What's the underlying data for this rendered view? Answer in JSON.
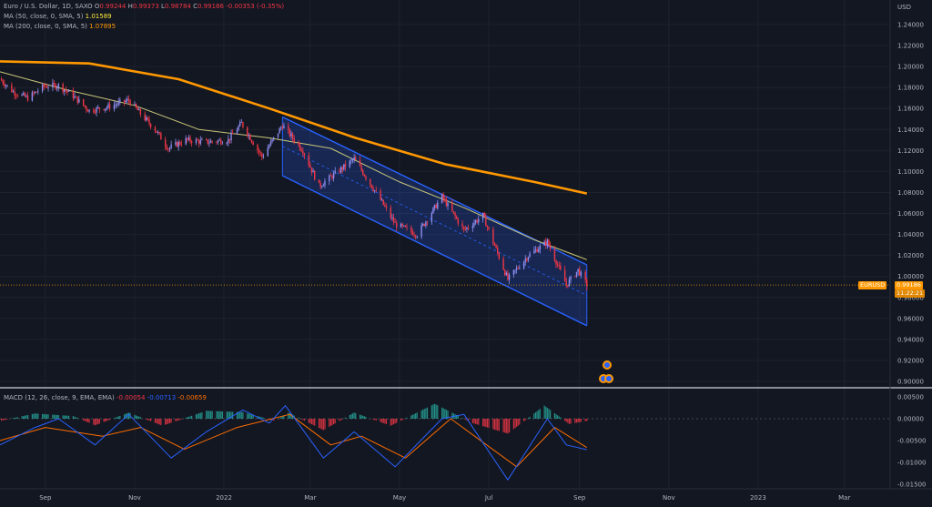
{
  "legend": {
    "symbol": "Euro / U.S. Dollar, 1D, SAXO",
    "o_label": "O",
    "o_val": "0.99244",
    "h_label": "H",
    "h_val": "0.99373",
    "l_label": "L",
    "l_val": "0.98784",
    "c_label": "C",
    "c_val": "0.99186",
    "change": "-0.00353 (-0.35%)",
    "ma50_label": "MA (50, close, 0, SMA, 5)",
    "ma50_val": "1.01589",
    "ma200_label": "MA (200, close, 0, SMA, 5)",
    "ma200_val": "1.07895",
    "macd_label": "MACD (12, 26, close, 9, EMA, EMA)",
    "macd_hist": "-0.00054",
    "macd_line": "-0.00713",
    "macd_signal": "-0.00659"
  },
  "badges": {
    "symbol": "EURUSD",
    "price": "0.99186",
    "countdown": "11:22:21"
  },
  "colors": {
    "background": "#131722",
    "up": "#8e8ef0",
    "down": "#f23645",
    "ma50": "#c9c77a",
    "ma200": "#ff9800",
    "channel": "#2962ff",
    "macd": "#2962ff",
    "signal": "#ff6d00",
    "hist_up": "#26a69a",
    "hist_down": "#f23645",
    "price_badge": "#ff9800"
  },
  "chart_data": [
    {
      "type": "line",
      "title": "Euro / U.S. Dollar, 1D, SAXO",
      "ylabel": "USD",
      "ylim": [
        0.89,
        1.25
      ],
      "y_ticks": [
        "1.24000",
        "1.22000",
        "1.20000",
        "1.18000",
        "1.16000",
        "1.14000",
        "1.12000",
        "1.10000",
        "1.08000",
        "1.06000",
        "1.04000",
        "1.02000",
        "1.00000",
        "0.98000",
        "0.96000",
        "0.94000",
        "0.92000",
        "0.90000"
      ],
      "x_ticks": [
        "Sep",
        "Nov",
        "2022",
        "Mar",
        "May",
        "Jul",
        "Sep",
        "Nov",
        "2023",
        "Mar"
      ],
      "price_path": [
        {
          "x": "2021-08-01",
          "y": 1.188
        },
        {
          "x": "2021-08-10",
          "y": 1.176
        },
        {
          "x": "2021-08-20",
          "y": 1.17
        },
        {
          "x": "2021-08-31",
          "y": 1.181
        },
        {
          "x": "2021-09-10",
          "y": 1.182
        },
        {
          "x": "2021-09-20",
          "y": 1.172
        },
        {
          "x": "2021-10-01",
          "y": 1.158
        },
        {
          "x": "2021-10-15",
          "y": 1.162
        },
        {
          "x": "2021-10-28",
          "y": 1.168
        },
        {
          "x": "2021-11-05",
          "y": 1.155
        },
        {
          "x": "2021-11-15",
          "y": 1.14
        },
        {
          "x": "2021-11-24",
          "y": 1.122
        },
        {
          "x": "2021-12-06",
          "y": 1.13
        },
        {
          "x": "2021-12-20",
          "y": 1.128
        },
        {
          "x": "2022-01-04",
          "y": 1.13
        },
        {
          "x": "2022-01-13",
          "y": 1.146
        },
        {
          "x": "2022-01-27",
          "y": 1.114
        },
        {
          "x": "2022-02-10",
          "y": 1.144
        },
        {
          "x": "2022-02-24",
          "y": 1.12
        },
        {
          "x": "2022-03-07",
          "y": 1.086
        },
        {
          "x": "2022-03-31",
          "y": 1.112
        },
        {
          "x": "2022-04-14",
          "y": 1.082
        },
        {
          "x": "2022-04-28",
          "y": 1.05
        },
        {
          "x": "2022-05-13",
          "y": 1.04
        },
        {
          "x": "2022-05-30",
          "y": 1.076
        },
        {
          "x": "2022-06-14",
          "y": 1.044
        },
        {
          "x": "2022-06-27",
          "y": 1.058
        },
        {
          "x": "2022-07-14",
          "y": 0.997
        },
        {
          "x": "2022-07-28",
          "y": 1.02
        },
        {
          "x": "2022-08-10",
          "y": 1.033
        },
        {
          "x": "2022-08-23",
          "y": 0.992
        },
        {
          "x": "2022-08-31",
          "y": 1.006
        },
        {
          "x": "2022-09-06",
          "y": 0.992
        }
      ],
      "series": [
        {
          "name": "MA (50, close, 0, SMA, 5)",
          "last": 1.01589,
          "values": [
            {
              "x": "2021-08-01",
              "y": 1.195
            },
            {
              "x": "2021-09-15",
              "y": 1.178
            },
            {
              "x": "2021-11-01",
              "y": 1.163
            },
            {
              "x": "2021-12-15",
              "y": 1.14
            },
            {
              "x": "2022-02-01",
              "y": 1.132
            },
            {
              "x": "2022-03-15",
              "y": 1.122
            },
            {
              "x": "2022-05-01",
              "y": 1.09
            },
            {
              "x": "2022-06-15",
              "y": 1.065
            },
            {
              "x": "2022-08-01",
              "y": 1.035
            },
            {
              "x": "2022-09-06",
              "y": 1.016
            }
          ]
        },
        {
          "name": "MA (200, close, 0, SMA, 5)",
          "last": 1.07895,
          "values": [
            {
              "x": "2021-08-01",
              "y": 1.205
            },
            {
              "x": "2021-10-01",
              "y": 1.203
            },
            {
              "x": "2021-12-01",
              "y": 1.188
            },
            {
              "x": "2022-02-01",
              "y": 1.16
            },
            {
              "x": "2022-04-01",
              "y": 1.132
            },
            {
              "x": "2022-06-01",
              "y": 1.107
            },
            {
              "x": "2022-08-01",
              "y": 1.09
            },
            {
              "x": "2022-09-06",
              "y": 1.079
            }
          ]
        }
      ],
      "channel": {
        "start": "2022-02-10",
        "end": "2022-09-06",
        "upper": [
          1.152,
          1.011
        ],
        "lower": [
          1.096,
          0.953
        ]
      },
      "last_price": 0.99186
    },
    {
      "type": "line",
      "title": "MACD (12, 26, close, 9, EMA, EMA)",
      "ylim": [
        -0.0175,
        0.0055
      ],
      "y_ticks": [
        "0.00500",
        "0.00000",
        "-0.00500",
        "-0.01000",
        "-0.01500"
      ],
      "series": [
        {
          "name": "MACD",
          "last": -0.00713,
          "values": [
            {
              "x": "2021-08-01",
              "y": -0.006
            },
            {
              "x": "2021-08-25",
              "y": -0.002
            },
            {
              "x": "2021-09-10",
              "y": 0.0
            },
            {
              "x": "2021-10-05",
              "y": -0.006
            },
            {
              "x": "2021-10-28",
              "y": 0.001
            },
            {
              "x": "2021-11-26",
              "y": -0.009
            },
            {
              "x": "2021-12-20",
              "y": -0.003
            },
            {
              "x": "2022-01-14",
              "y": 0.002
            },
            {
              "x": "2022-02-01",
              "y": -0.001
            },
            {
              "x": "2022-02-12",
              "y": 0.003
            },
            {
              "x": "2022-03-10",
              "y": -0.009
            },
            {
              "x": "2022-03-31",
              "y": -0.003
            },
            {
              "x": "2022-04-28",
              "y": -0.011
            },
            {
              "x": "2022-05-30",
              "y": 0.0
            },
            {
              "x": "2022-06-14",
              "y": 0.001
            },
            {
              "x": "2022-07-14",
              "y": -0.014
            },
            {
              "x": "2022-08-10",
              "y": 0.0
            },
            {
              "x": "2022-08-23",
              "y": -0.006
            },
            {
              "x": "2022-09-06",
              "y": -0.0071
            }
          ]
        },
        {
          "name": "Signal",
          "last": -0.00659,
          "values": [
            {
              "x": "2021-08-01",
              "y": -0.005
            },
            {
              "x": "2021-09-01",
              "y": -0.002
            },
            {
              "x": "2021-10-10",
              "y": -0.004
            },
            {
              "x": "2021-11-05",
              "y": -0.002
            },
            {
              "x": "2021-12-05",
              "y": -0.007
            },
            {
              "x": "2022-01-10",
              "y": -0.002
            },
            {
              "x": "2022-02-15",
              "y": 0.001
            },
            {
              "x": "2022-03-15",
              "y": -0.006
            },
            {
              "x": "2022-04-05",
              "y": -0.004
            },
            {
              "x": "2022-05-05",
              "y": -0.009
            },
            {
              "x": "2022-06-05",
              "y": 0.0
            },
            {
              "x": "2022-07-20",
              "y": -0.011
            },
            {
              "x": "2022-08-15",
              "y": -0.002
            },
            {
              "x": "2022-09-06",
              "y": -0.0066
            }
          ]
        }
      ],
      "histogram": {
        "last": -0.00054,
        "values": [
          {
            "x": "2021-08-01",
            "y": -0.0005
          },
          {
            "x": "2021-08-25",
            "y": 0.0012
          },
          {
            "x": "2021-09-20",
            "y": 0.0006
          },
          {
            "x": "2021-10-05",
            "y": -0.0015
          },
          {
            "x": "2021-10-28",
            "y": 0.0014
          },
          {
            "x": "2021-11-20",
            "y": -0.0016
          },
          {
            "x": "2021-12-20",
            "y": 0.0018
          },
          {
            "x": "2022-01-14",
            "y": 0.0015
          },
          {
            "x": "2022-02-05",
            "y": -0.0005
          },
          {
            "x": "2022-02-14",
            "y": 0.0014
          },
          {
            "x": "2022-03-10",
            "y": -0.0026
          },
          {
            "x": "2022-03-31",
            "y": 0.0014
          },
          {
            "x": "2022-04-25",
            "y": -0.0016
          },
          {
            "x": "2022-05-25",
            "y": 0.0034
          },
          {
            "x": "2022-06-20",
            "y": -0.001
          },
          {
            "x": "2022-07-14",
            "y": -0.0034
          },
          {
            "x": "2022-08-08",
            "y": 0.003
          },
          {
            "x": "2022-08-25",
            "y": -0.0012
          },
          {
            "x": "2022-09-06",
            "y": -0.0005
          }
        ]
      }
    }
  ]
}
